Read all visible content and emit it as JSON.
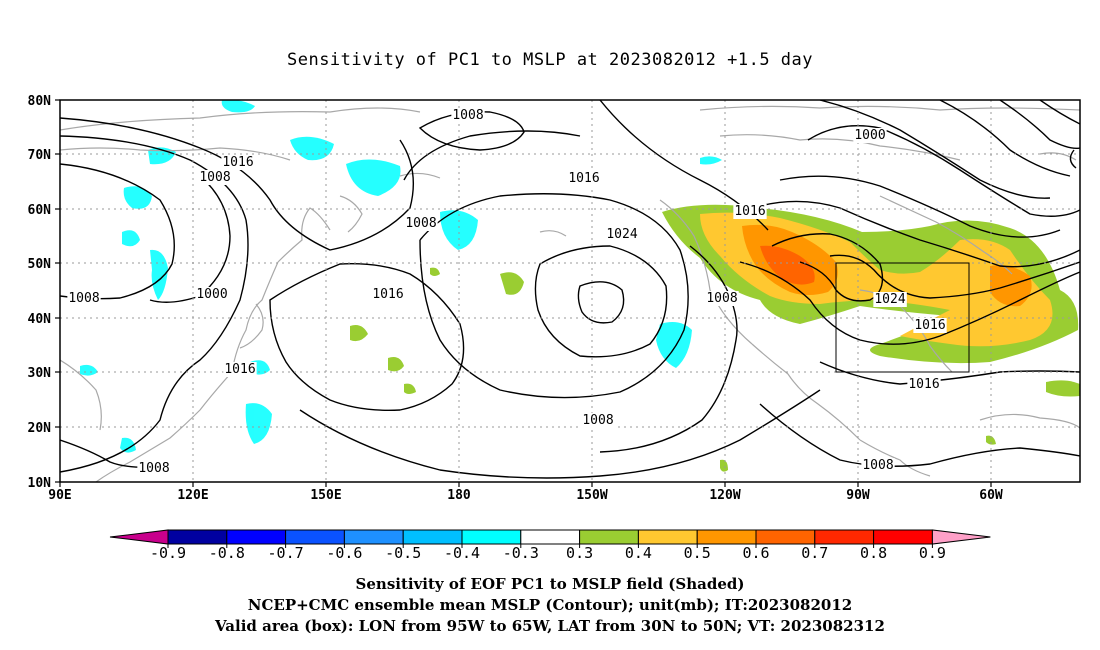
{
  "title": "Sensitivity of PC1 to MSLP at 2023082012 +1.5 day",
  "map": {
    "lon_ticks": [
      "90E",
      "120E",
      "150E",
      "180",
      "150W",
      "120W",
      "90W",
      "60W"
    ],
    "lat_ticks": [
      "80N",
      "70N",
      "60N",
      "50N",
      "40N",
      "30N",
      "20N",
      "10N"
    ],
    "contour_labels": [
      {
        "text": "1008"
      },
      {
        "text": "1016"
      },
      {
        "text": "1008"
      },
      {
        "text": "1008"
      },
      {
        "text": "1016"
      },
      {
        "text": "1024"
      },
      {
        "text": "1016"
      },
      {
        "text": "1000"
      },
      {
        "text": "1008"
      },
      {
        "text": "1016"
      },
      {
        "text": "1008"
      },
      {
        "text": "1008"
      },
      {
        "text": "1016"
      },
      {
        "text": "1000"
      },
      {
        "text": "1008"
      },
      {
        "text": "1024"
      },
      {
        "text": "1016"
      },
      {
        "text": "1016"
      },
      {
        "text": "1008"
      }
    ],
    "valid_box": {
      "lon_from": "95W",
      "lon_to": "65W",
      "lat_from": "30N",
      "lat_to": "50N"
    },
    "colors": {
      "contour": "#000000",
      "coastline": "#a8a8a8",
      "grid": "#9a9a9a"
    }
  },
  "colorbar": {
    "labels": [
      "-0.9",
      "-0.8",
      "-0.7",
      "-0.6",
      "-0.5",
      "-0.4",
      "-0.3",
      "0.3",
      "0.4",
      "0.5",
      "0.6",
      "0.7",
      "0.8",
      "0.9"
    ],
    "colors": [
      "#c8008c",
      "#0000a0",
      "#0000ff",
      "#0a52ff",
      "#1e90ff",
      "#00bfff",
      "#00ffff",
      "#ffffff",
      "#9acd32",
      "#ffc830",
      "#ff9600",
      "#ff6400",
      "#ff2800",
      "#ff0000",
      "#ffa0c8"
    ]
  },
  "captions": [
    "Sensitivity of EOF PC1 to MSLP field (Shaded)",
    "NCEP+CMC ensemble mean MSLP (Contour); unit(mb); IT:2023082012",
    "Valid area (box): LON from 95W to 65W, LAT from 30N to 50N; VT: 2023082312"
  ]
}
